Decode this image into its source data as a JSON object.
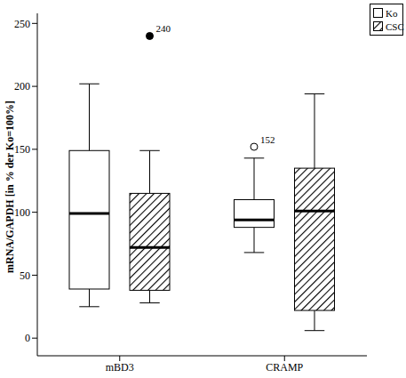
{
  "chart_data": {
    "type": "boxplot",
    "ylabel": "mRNA/GAPDH [in % der Ko=100%]",
    "categories": [
      "mBD3",
      "CRAMP"
    ],
    "ylim": [
      -14,
      258
    ],
    "yticks": [
      0,
      50,
      100,
      150,
      200,
      250
    ],
    "legend": "top right",
    "series": [
      {
        "name": "Ko",
        "color": "#ffffff",
        "values": [
          {
            "min": 25,
            "q1": 39,
            "median": 99,
            "q3": 149,
            "max": 202,
            "outliers": []
          },
          {
            "min": 68,
            "q1": 88,
            "median": 94,
            "q3": 110,
            "max": 143,
            "outliers": [
              {
                "value": 152,
                "label": "152",
                "marker": "open"
              }
            ]
          }
        ]
      },
      {
        "name": "CSC",
        "color": "#000000",
        "values": [
          {
            "min": 28,
            "q1": 38,
            "median": 72,
            "q3": 115,
            "max": 149,
            "outliers": [
              {
                "value": 240,
                "label": "240",
                "marker": "filled"
              }
            ]
          },
          {
            "min": 6,
            "q1": 22,
            "median": 101,
            "q3": 135,
            "max": 194,
            "outliers": []
          }
        ]
      }
    ]
  }
}
